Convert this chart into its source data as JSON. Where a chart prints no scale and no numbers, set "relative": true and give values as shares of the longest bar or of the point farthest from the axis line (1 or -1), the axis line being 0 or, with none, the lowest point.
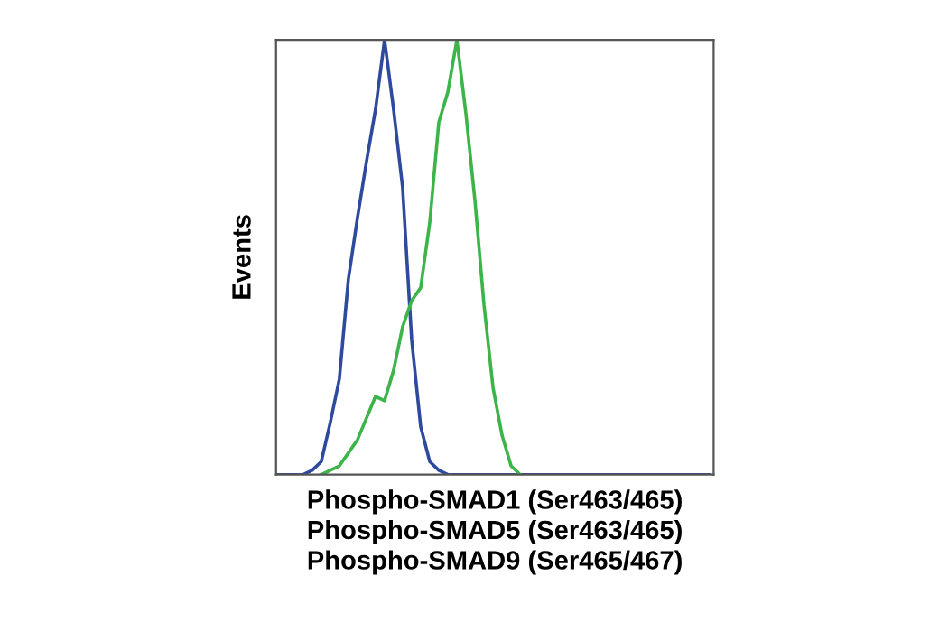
{
  "chart_data": {
    "type": "line",
    "relative": true,
    "marker": "none",
    "line_style": "solid",
    "xlabel": "Phospho-SMAD1 (Ser463/465)\nPhospho-SMAD5 (Ser463/465)\nPhospho-SMAD9 (Ser465/467)",
    "ylabel": "Events",
    "categories": [
      null,
      null,
      null,
      null,
      null,
      null,
      null,
      null,
      null,
      null,
      null,
      null,
      null,
      null,
      null,
      null,
      null,
      null,
      null,
      null,
      null,
      null,
      null,
      null,
      null,
      null,
      null,
      null,
      null,
      null,
      null,
      null,
      null,
      null,
      null,
      null,
      null,
      null,
      null,
      null,
      null,
      null,
      null,
      null,
      null,
      null,
      null,
      null,
      null
    ],
    "series": [
      {
        "color": "#2e4a9e",
        "values": [
          0,
          0,
          0,
          0,
          0.01,
          0.03,
          0.12,
          0.22,
          0.45,
          0.59,
          0.72,
          0.84,
          1.0,
          0.84,
          0.66,
          0.31,
          0.11,
          0.03,
          0.01,
          0,
          0,
          0,
          0,
          0,
          0,
          0,
          0,
          0,
          0,
          0,
          0,
          0,
          0,
          0,
          0,
          0,
          0,
          0,
          0,
          0,
          0,
          0,
          0,
          0,
          0,
          0,
          0,
          0,
          0
        ]
      },
      {
        "color": "#3cb44a",
        "values": [
          null,
          null,
          null,
          null,
          null,
          0,
          0.01,
          0.02,
          0.05,
          0.08,
          0.13,
          0.18,
          0.17,
          0.24,
          0.34,
          0.4,
          0.43,
          0.58,
          0.81,
          0.88,
          1.0,
          0.83,
          0.63,
          0.39,
          0.2,
          0.09,
          0.02,
          0,
          null,
          null,
          null,
          null,
          null,
          null,
          null,
          null,
          null,
          null,
          null,
          null,
          null,
          null,
          null,
          null,
          null,
          null,
          null,
          null,
          null
        ]
      }
    ]
  }
}
